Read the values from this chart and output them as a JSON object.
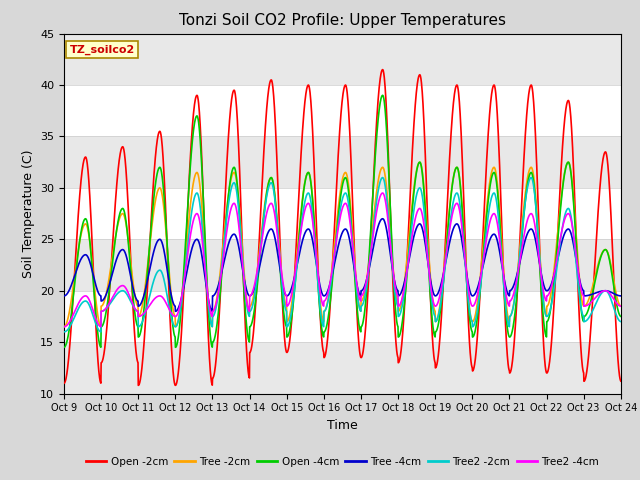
{
  "title": "Tonzi Soil CO2 Profile: Upper Temperatures",
  "ylabel": "Soil Temperature (C)",
  "xlabel": "Time",
  "source_label": "TZ_soilco2",
  "ylim": [
    10,
    45
  ],
  "xtick_labels": [
    "Oct 9",
    "Oct 10",
    "Oct 11",
    "Oct 12",
    "Oct 13",
    "Oct 14",
    "Oct 15",
    "Oct 16",
    "Oct 17",
    "Oct 18",
    "Oct 19",
    "Oct 20",
    "Oct 21",
    "Oct 22",
    "Oct 23",
    "Oct 24"
  ],
  "series_colors": [
    "#ff0000",
    "#ffa500",
    "#00cc00",
    "#0000cc",
    "#00cccc",
    "#ff00ff"
  ],
  "series_labels": [
    "Open -2cm",
    "Tree -2cm",
    "Open -4cm",
    "Tree -4cm",
    "Tree2 -2cm",
    "Tree2 -4cm"
  ],
  "background_color": "#d8d8d8",
  "plot_bg_color": "#ffffff",
  "band_color": "#e8e8e8",
  "n_days": 15,
  "points_per_day": 144,
  "open2_max": [
    33.0,
    34.0,
    35.5,
    39.0,
    39.5,
    40.5,
    40.0,
    40.0,
    41.5,
    41.0,
    40.0,
    40.0,
    40.0,
    38.5,
    33.5
  ],
  "open2_min": [
    11.0,
    13.0,
    10.8,
    10.8,
    11.5,
    14.0,
    14.0,
    13.5,
    13.5,
    13.0,
    12.5,
    12.2,
    12.0,
    12.0,
    11.2
  ],
  "tree2_max": [
    26.5,
    27.5,
    30.0,
    31.5,
    31.5,
    31.0,
    31.5,
    31.5,
    32.0,
    32.5,
    32.0,
    32.0,
    32.0,
    32.5,
    24.0
  ],
  "tree2_min": [
    16.5,
    18.5,
    17.5,
    16.5,
    18.0,
    18.5,
    17.0,
    18.0,
    19.0,
    18.0,
    17.0,
    17.0,
    17.5,
    18.5,
    18.5
  ],
  "open4_max": [
    27.0,
    28.0,
    32.0,
    37.0,
    32.0,
    31.0,
    31.5,
    31.0,
    39.0,
    32.5,
    32.0,
    31.5,
    31.5,
    32.5,
    24.0
  ],
  "open4_min": [
    14.5,
    16.5,
    15.5,
    14.5,
    15.0,
    16.5,
    15.5,
    16.0,
    16.5,
    15.5,
    16.0,
    15.5,
    15.5,
    17.0,
    17.5
  ],
  "tree4_max": [
    23.5,
    24.0,
    25.0,
    25.0,
    25.5,
    26.0,
    26.0,
    26.0,
    27.0,
    26.5,
    26.5,
    25.5,
    26.0,
    26.0,
    20.0
  ],
  "tree4_min": [
    19.5,
    19.0,
    18.5,
    18.0,
    19.5,
    19.5,
    19.5,
    19.5,
    20.0,
    19.5,
    19.5,
    19.5,
    20.0,
    20.0,
    19.5
  ],
  "tree2_2_max": [
    19.0,
    20.0,
    22.0,
    29.5,
    30.5,
    30.5,
    29.5,
    29.5,
    31.0,
    30.0,
    29.5,
    29.5,
    31.0,
    28.0,
    20.0
  ],
  "tree2_2_min": [
    16.0,
    18.0,
    16.5,
    16.5,
    17.5,
    18.0,
    16.5,
    18.0,
    18.5,
    17.5,
    17.0,
    16.5,
    17.5,
    17.5,
    17.0
  ],
  "tree2_4_max": [
    19.5,
    20.5,
    19.5,
    27.5,
    28.5,
    28.5,
    28.5,
    28.5,
    29.5,
    28.0,
    28.5,
    27.5,
    27.5,
    27.5,
    20.0
  ],
  "tree2_4_min": [
    16.5,
    18.0,
    17.5,
    17.5,
    18.0,
    19.5,
    18.5,
    19.0,
    19.5,
    18.5,
    18.5,
    18.5,
    19.0,
    19.5,
    18.5
  ]
}
